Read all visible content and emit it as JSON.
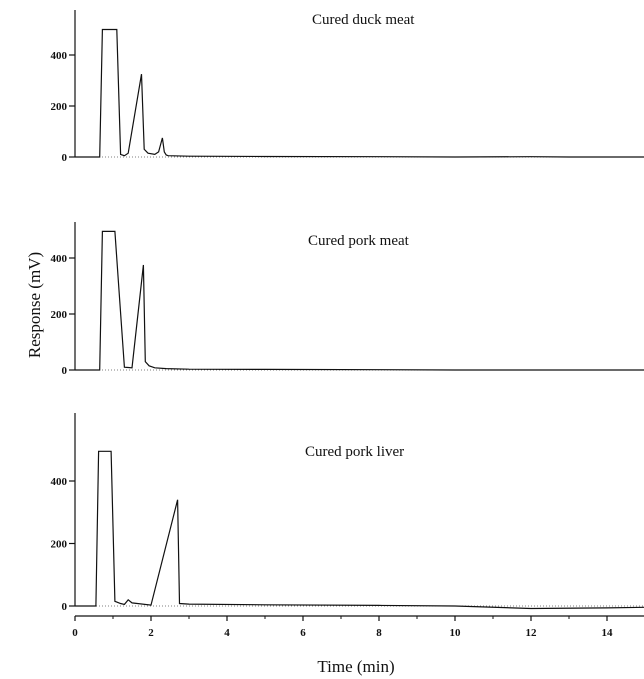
{
  "chart_data": [
    {
      "type": "line",
      "title": "Cured duck meat",
      "ylim": [
        0,
        520
      ],
      "yticks": [
        0,
        200,
        400
      ],
      "xlim": [
        0,
        15
      ],
      "series": [
        {
          "x": [
            0,
            0.65,
            0.72,
            1.1,
            1.2,
            1.3,
            1.4,
            1.75,
            1.82,
            1.92,
            2.1,
            2.2,
            2.3,
            2.35,
            2.4,
            2.45,
            3,
            5,
            8,
            10,
            12,
            13,
            15
          ],
          "values": [
            0,
            0,
            500,
            500,
            10,
            5,
            15,
            325,
            30,
            15,
            10,
            20,
            75,
            20,
            8,
            5,
            3,
            2,
            1,
            0,
            1,
            0,
            0
          ]
        }
      ]
    },
    {
      "type": "line",
      "title": "Cured pork meat",
      "ylim": [
        0,
        520
      ],
      "yticks": [
        0,
        200,
        400
      ],
      "xlim": [
        0,
        15
      ],
      "series": [
        {
          "x": [
            0,
            0.65,
            0.72,
            1.05,
            1.15,
            1.3,
            1.5,
            1.8,
            1.85,
            1.95,
            2.1,
            2.4,
            3,
            5,
            8,
            10,
            12,
            15
          ],
          "values": [
            0,
            0,
            495,
            495,
            300,
            10,
            8,
            375,
            30,
            15,
            8,
            5,
            3,
            2,
            1,
            0,
            0,
            0
          ]
        }
      ]
    },
    {
      "type": "line",
      "title": "Cured pork liver",
      "ylim": [
        0,
        520
      ],
      "yticks": [
        0,
        200,
        400
      ],
      "xlim": [
        0,
        15
      ],
      "xticks": [
        0,
        2,
        4,
        6,
        8,
        10,
        12,
        14
      ],
      "xlabel": "Time (min)",
      "series": [
        {
          "x": [
            0,
            0.55,
            0.62,
            0.95,
            1.05,
            1.2,
            1.3,
            1.4,
            1.5,
            2.0,
            2.7,
            2.75,
            3,
            5,
            8,
            10,
            12,
            14,
            15
          ],
          "values": [
            0,
            0,
            495,
            495,
            15,
            8,
            5,
            20,
            10,
            3,
            340,
            8,
            6,
            4,
            2,
            0,
            -8,
            -6,
            -4
          ]
        }
      ]
    }
  ],
  "ylabel": "Response (mV)"
}
